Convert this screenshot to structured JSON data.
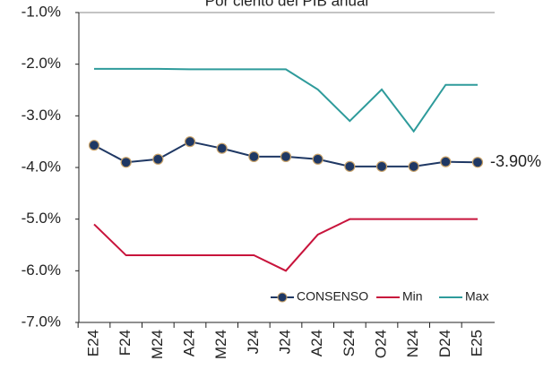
{
  "chart_data": {
    "type": "line",
    "title": "Por ciento del PIB anual",
    "categories": [
      "E24",
      "F24",
      "M24",
      "A24",
      "M24",
      "J24",
      "J24",
      "A24",
      "S24",
      "O24",
      "N24",
      "D24",
      "E25"
    ],
    "series": [
      {
        "name": "CONSENSO",
        "color": "#1f3864",
        "marker": true,
        "values": [
          -3.57,
          -3.9,
          -3.84,
          -3.5,
          -3.63,
          -3.79,
          -3.79,
          -3.84,
          -3.98,
          -3.98,
          -3.98,
          -3.89,
          -3.9
        ],
        "value_labels": [
          null,
          null,
          null,
          null,
          null,
          null,
          null,
          null,
          null,
          null,
          null,
          null,
          "-3.90%"
        ]
      },
      {
        "name": "Min",
        "color": "#c8143c",
        "marker": false,
        "values": [
          -5.1,
          -5.7,
          -5.7,
          -5.7,
          -5.7,
          -5.7,
          -6.0,
          -5.3,
          -5.0,
          -5.0,
          -5.0,
          -5.0,
          -5.0
        ]
      },
      {
        "name": "Max",
        "color": "#2e9b9b",
        "marker": false,
        "values": [
          -2.09,
          -2.09,
          -2.09,
          -2.1,
          -2.1,
          -2.1,
          -2.1,
          -2.49,
          -3.1,
          -2.49,
          -3.3,
          -2.4,
          -2.4
        ]
      }
    ],
    "ylim": [
      -7,
      -1
    ],
    "yticks": [
      {
        "value": -7,
        "label": "-7.0%"
      },
      {
        "value": -6,
        "label": "-6.0%"
      },
      {
        "value": -5,
        "label": "-5.0%"
      },
      {
        "value": -4,
        "label": "-4.0%"
      },
      {
        "value": -3,
        "label": "-3.0%"
      },
      {
        "value": -2,
        "label": "-2.0%"
      },
      {
        "value": -1,
        "label": "-1.0%"
      }
    ],
    "legend": "bottom-right"
  }
}
